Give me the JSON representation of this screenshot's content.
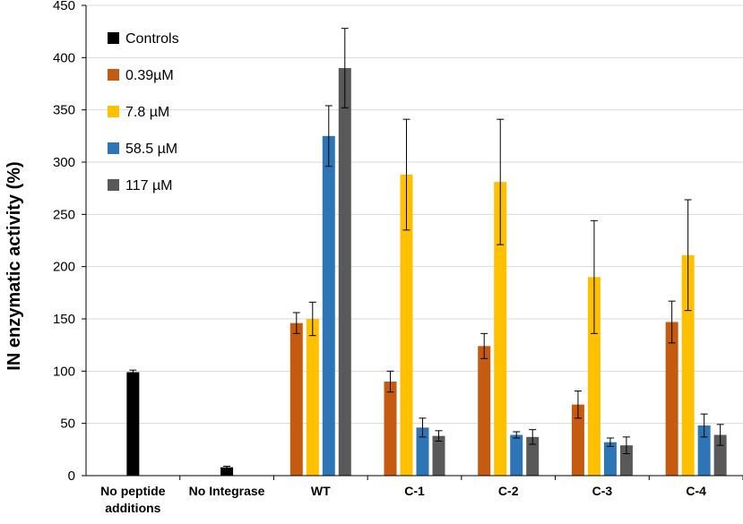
{
  "chart_data": {
    "type": "bar",
    "title": "",
    "xlabel": "",
    "ylabel": "IN enzymatic activity (%)",
    "ylim": [
      0,
      450
    ],
    "yticks": [
      "0",
      "50",
      "100",
      "150",
      "200",
      "250",
      "300",
      "350",
      "400",
      "450"
    ],
    "grid": "horizontal",
    "legend_position": "top-left",
    "categories": [
      [
        "No peptide",
        "additions"
      ],
      [
        "No Integrase"
      ],
      [
        "WT"
      ],
      [
        "C-1"
      ],
      [
        "C-2"
      ],
      [
        "C-3"
      ],
      [
        "C-4"
      ]
    ],
    "series": [
      {
        "name": "Controls",
        "color": "#000000",
        "values": [
          99,
          8,
          null,
          null,
          null,
          null,
          null
        ],
        "errors": [
          2,
          1,
          null,
          null,
          null,
          null,
          null
        ]
      },
      {
        "name": "0.39µM",
        "color": "#C55A11",
        "values": [
          null,
          null,
          146,
          90,
          124,
          68,
          147
        ],
        "errors": [
          null,
          null,
          10,
          10,
          12,
          13,
          20
        ]
      },
      {
        "name": "7.8 µM",
        "color": "#FFC000",
        "values": [
          null,
          null,
          150,
          288,
          281,
          190,
          211
        ],
        "errors": [
          null,
          null,
          16,
          53,
          60,
          54,
          53
        ]
      },
      {
        "name": "58.5 µM",
        "color": "#2E75B6",
        "values": [
          null,
          null,
          325,
          46,
          39,
          32,
          48
        ],
        "errors": [
          null,
          null,
          29,
          9,
          3,
          4,
          11
        ]
      },
      {
        "name": "117 µM",
        "color": "#595959",
        "values": [
          null,
          null,
          390,
          38,
          37,
          29,
          39
        ],
        "errors": [
          null,
          null,
          38,
          5,
          7,
          8,
          10
        ]
      }
    ]
  }
}
